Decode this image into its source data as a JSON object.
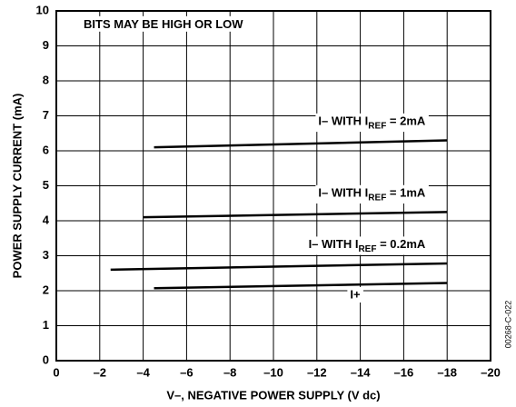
{
  "chart_data": {
    "type": "line",
    "title": "BITS MAY BE HIGH OR LOW",
    "x_label": "V–, NEGATIVE POWER SUPPLY (V dc)",
    "y_label": "POWER SUPPLY CURRENT (mA)",
    "figure_id": "00268-C-022",
    "xlim": [
      0,
      -20
    ],
    "ylim": [
      0,
      10
    ],
    "xticks": [
      0,
      {
        "value": -2,
        "label": "–2"
      },
      {
        "value": -4,
        "label": "–4"
      },
      {
        "value": -6,
        "label": "–6"
      },
      {
        "value": -8,
        "label": "–8"
      },
      {
        "value": -10,
        "label": "–10"
      },
      {
        "value": -12,
        "label": "–12"
      },
      {
        "value": -14,
        "label": "–14"
      },
      {
        "value": -16,
        "label": "–16"
      },
      {
        "value": -18,
        "label": "–18"
      },
      {
        "value": -20,
        "label": "–20"
      }
    ],
    "yticks": [
      0,
      1,
      2,
      3,
      4,
      5,
      6,
      7,
      8,
      9,
      10
    ],
    "grid": true,
    "color": "#000000",
    "series": [
      {
        "name": "I– WITH I",
        "name_sub": "REF",
        "name_tail": " = 2mA",
        "x": [
          -4.5,
          -18
        ],
        "values": [
          6.1,
          6.3
        ]
      },
      {
        "name": "I– WITH I",
        "name_sub": "REF",
        "name_tail": " = 1mA",
        "x": [
          -4,
          -18
        ],
        "values": [
          4.1,
          4.25
        ]
      },
      {
        "name": "I– WITH I",
        "name_sub": "REF",
        "name_tail": " = 0.2mA",
        "x": [
          -2.5,
          -18
        ],
        "values": [
          2.6,
          2.78
        ]
      },
      {
        "name": "I+",
        "x": [
          -4.5,
          -18
        ],
        "values": [
          2.07,
          2.22
        ]
      }
    ]
  }
}
